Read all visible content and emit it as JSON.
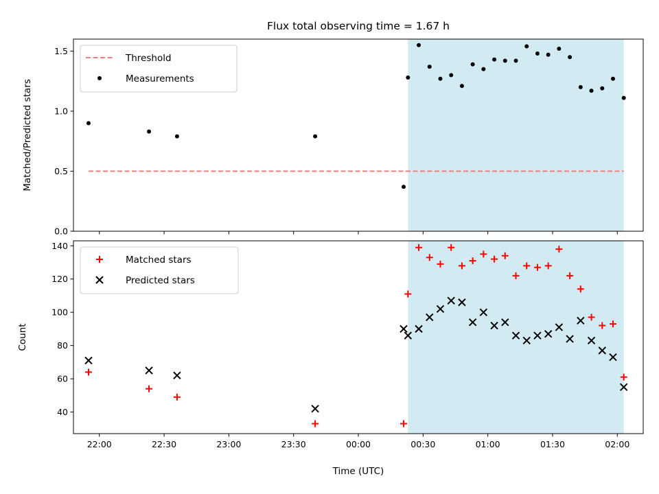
{
  "chart_data": [
    {
      "type": "scatter",
      "title": "Flux total observing time = 1.67 h",
      "ylabel": "Matched/Predicted stars",
      "xlabel": "",
      "xlim": [
        "21:48",
        "02:12"
      ],
      "ylim": [
        0,
        1.6
      ],
      "yticks": [
        0.0,
        0.5,
        1.0,
        1.5
      ],
      "ytick_labels": [
        "0.0",
        "0.5",
        "1.0",
        "1.5"
      ],
      "xticks": [
        "22:00",
        "22:30",
        "23:00",
        "23:30",
        "00:00",
        "00:30",
        "01:00",
        "01:30",
        "02:00"
      ],
      "xtick_labels": [],
      "grid": false,
      "legend_position": "top-left",
      "shaded_span": [
        "00:23",
        "02:03"
      ],
      "shade_color": "#add8e6",
      "threshold": {
        "name": "Threshold",
        "value": 0.5,
        "x_range": [
          "21:55",
          "02:03"
        ],
        "color": "#f08080",
        "style": "dashed"
      },
      "series": [
        {
          "name": "Measurements",
          "marker": "dot",
          "color": "#000000",
          "points": [
            {
              "x": "21:55",
              "y": 0.9
            },
            {
              "x": "22:23",
              "y": 0.83
            },
            {
              "x": "22:36",
              "y": 0.79
            },
            {
              "x": "23:40",
              "y": 0.79
            },
            {
              "x": "00:21",
              "y": 0.37
            },
            {
              "x": "00:23",
              "y": 1.28
            },
            {
              "x": "00:28",
              "y": 1.55
            },
            {
              "x": "00:33",
              "y": 1.37
            },
            {
              "x": "00:38",
              "y": 1.27
            },
            {
              "x": "00:43",
              "y": 1.3
            },
            {
              "x": "00:48",
              "y": 1.21
            },
            {
              "x": "00:53",
              "y": 1.39
            },
            {
              "x": "00:58",
              "y": 1.35
            },
            {
              "x": "01:03",
              "y": 1.43
            },
            {
              "x": "01:08",
              "y": 1.42
            },
            {
              "x": "01:13",
              "y": 1.42
            },
            {
              "x": "01:18",
              "y": 1.54
            },
            {
              "x": "01:23",
              "y": 1.48
            },
            {
              "x": "01:28",
              "y": 1.47
            },
            {
              "x": "01:33",
              "y": 1.52
            },
            {
              "x": "01:38",
              "y": 1.45
            },
            {
              "x": "01:43",
              "y": 1.2
            },
            {
              "x": "01:48",
              "y": 1.17
            },
            {
              "x": "01:53",
              "y": 1.19
            },
            {
              "x": "01:58",
              "y": 1.27
            },
            {
              "x": "02:03",
              "y": 1.11
            }
          ]
        }
      ]
    },
    {
      "type": "scatter",
      "title": "",
      "ylabel": "Count",
      "xlabel": "Time (UTC)",
      "xlim": [
        "21:48",
        "02:12"
      ],
      "ylim": [
        27,
        143
      ],
      "yticks": [
        40,
        60,
        80,
        100,
        120,
        140
      ],
      "ytick_labels": [
        "40",
        "60",
        "80",
        "100",
        "120",
        "140"
      ],
      "xticks": [
        "22:00",
        "22:30",
        "23:00",
        "23:30",
        "00:00",
        "00:30",
        "01:00",
        "01:30",
        "02:00"
      ],
      "xtick_labels": [
        "22:00",
        "22:30",
        "23:00",
        "23:30",
        "00:00",
        "00:30",
        "01:00",
        "01:30",
        "02:00"
      ],
      "grid": false,
      "legend_position": "top-left",
      "shaded_span": [
        "00:23",
        "02:03"
      ],
      "shade_color": "#add8e6",
      "series": [
        {
          "name": "Matched stars",
          "marker": "plus",
          "color": "#ff0000",
          "points": [
            {
              "x": "21:55",
              "y": 64
            },
            {
              "x": "22:23",
              "y": 54
            },
            {
              "x": "22:36",
              "y": 49
            },
            {
              "x": "23:40",
              "y": 33
            },
            {
              "x": "00:21",
              "y": 33
            },
            {
              "x": "00:23",
              "y": 111
            },
            {
              "x": "00:28",
              "y": 139
            },
            {
              "x": "00:33",
              "y": 133
            },
            {
              "x": "00:38",
              "y": 129
            },
            {
              "x": "00:43",
              "y": 139
            },
            {
              "x": "00:48",
              "y": 128
            },
            {
              "x": "00:53",
              "y": 131
            },
            {
              "x": "00:58",
              "y": 135
            },
            {
              "x": "01:03",
              "y": 132
            },
            {
              "x": "01:08",
              "y": 134
            },
            {
              "x": "01:13",
              "y": 122
            },
            {
              "x": "01:18",
              "y": 128
            },
            {
              "x": "01:23",
              "y": 127
            },
            {
              "x": "01:28",
              "y": 128
            },
            {
              "x": "01:33",
              "y": 138
            },
            {
              "x": "01:38",
              "y": 122
            },
            {
              "x": "01:43",
              "y": 114
            },
            {
              "x": "01:48",
              "y": 97
            },
            {
              "x": "01:53",
              "y": 92
            },
            {
              "x": "01:58",
              "y": 93
            },
            {
              "x": "02:03",
              "y": 61
            }
          ]
        },
        {
          "name": "Predicted stars",
          "marker": "x",
          "color": "#000000",
          "points": [
            {
              "x": "21:55",
              "y": 71
            },
            {
              "x": "22:23",
              "y": 65
            },
            {
              "x": "22:36",
              "y": 62
            },
            {
              "x": "23:40",
              "y": 42
            },
            {
              "x": "00:21",
              "y": 90
            },
            {
              "x": "00:23",
              "y": 86
            },
            {
              "x": "00:28",
              "y": 90
            },
            {
              "x": "00:33",
              "y": 97
            },
            {
              "x": "00:38",
              "y": 102
            },
            {
              "x": "00:43",
              "y": 107
            },
            {
              "x": "00:48",
              "y": 106
            },
            {
              "x": "00:53",
              "y": 94
            },
            {
              "x": "00:58",
              "y": 100
            },
            {
              "x": "01:03",
              "y": 92
            },
            {
              "x": "01:08",
              "y": 94
            },
            {
              "x": "01:13",
              "y": 86
            },
            {
              "x": "01:18",
              "y": 83
            },
            {
              "x": "01:23",
              "y": 86
            },
            {
              "x": "01:28",
              "y": 87
            },
            {
              "x": "01:33",
              "y": 91
            },
            {
              "x": "01:38",
              "y": 84
            },
            {
              "x": "01:43",
              "y": 95
            },
            {
              "x": "01:48",
              "y": 83
            },
            {
              "x": "01:53",
              "y": 77
            },
            {
              "x": "01:58",
              "y": 73
            },
            {
              "x": "02:03",
              "y": 55
            }
          ]
        }
      ]
    }
  ]
}
